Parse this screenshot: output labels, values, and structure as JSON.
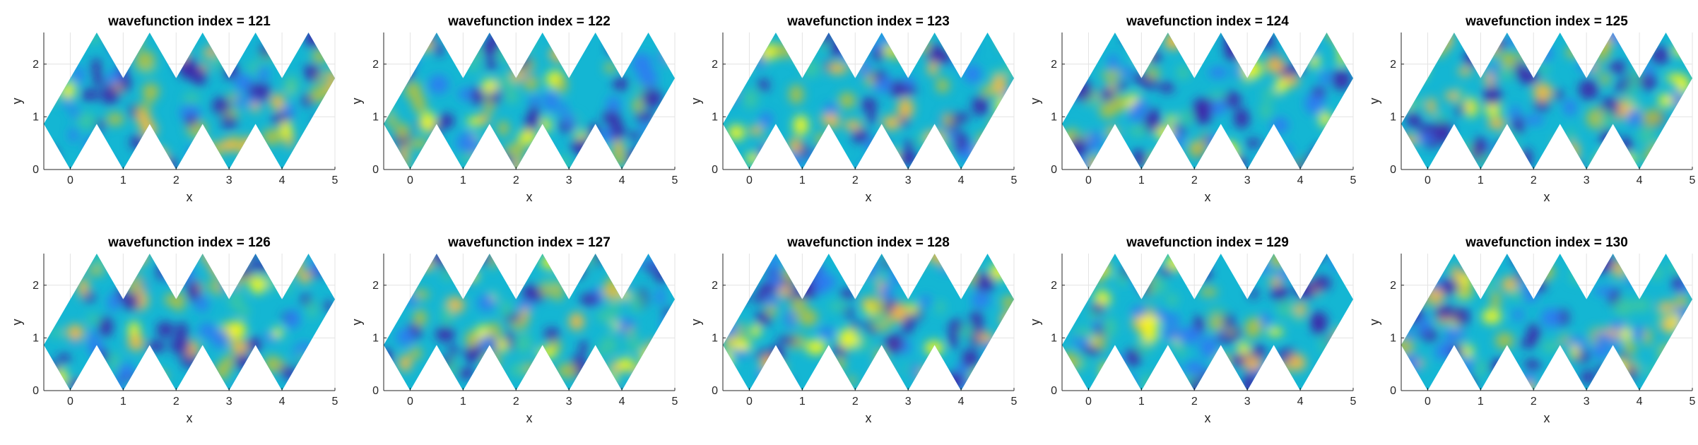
{
  "figure": {
    "colormap": [
      "#3e26a8",
      "#2e7af2",
      "#14b6d3",
      "#3bc7a3",
      "#b0c141",
      "#f8ba3d",
      "#f9fb15"
    ]
  },
  "chart_data": [
    {
      "type": "heatmap",
      "title": "wavefunction index = 121",
      "xlabel": "x",
      "ylabel": "y",
      "xlim": [
        -0.5,
        5
      ],
      "ylim": [
        0,
        2.6
      ],
      "xticks": [
        "0",
        "1",
        "2",
        "3",
        "4",
        "5"
      ],
      "yticks": [
        "0",
        "1",
        "2"
      ],
      "grid": true
    },
    {
      "type": "heatmap",
      "title": "wavefunction index = 122",
      "xlabel": "x",
      "ylabel": "y",
      "xlim": [
        -0.5,
        5
      ],
      "ylim": [
        0,
        2.6
      ],
      "xticks": [
        "0",
        "1",
        "2",
        "3",
        "4",
        "5"
      ],
      "yticks": [
        "0",
        "1",
        "2"
      ],
      "grid": true
    },
    {
      "type": "heatmap",
      "title": "wavefunction index = 123",
      "xlabel": "x",
      "ylabel": "y",
      "xlim": [
        -0.5,
        5
      ],
      "ylim": [
        0,
        2.6
      ],
      "xticks": [
        "0",
        "1",
        "2",
        "3",
        "4",
        "5"
      ],
      "yticks": [
        "0",
        "1",
        "2"
      ],
      "grid": true
    },
    {
      "type": "heatmap",
      "title": "wavefunction index = 124",
      "xlabel": "x",
      "ylabel": "y",
      "xlim": [
        -0.5,
        5
      ],
      "ylim": [
        0,
        2.6
      ],
      "xticks": [
        "0",
        "1",
        "2",
        "3",
        "4",
        "5"
      ],
      "yticks": [
        "0",
        "1",
        "2"
      ],
      "grid": true
    },
    {
      "type": "heatmap",
      "title": "wavefunction index = 125",
      "xlabel": "x",
      "ylabel": "y",
      "xlim": [
        -0.5,
        5
      ],
      "ylim": [
        0,
        2.6
      ],
      "xticks": [
        "0",
        "1",
        "2",
        "3",
        "4",
        "5"
      ],
      "yticks": [
        "0",
        "1",
        "2"
      ],
      "grid": true
    },
    {
      "type": "heatmap",
      "title": "wavefunction index = 126",
      "xlabel": "x",
      "ylabel": "y",
      "xlim": [
        -0.5,
        5
      ],
      "ylim": [
        0,
        2.6
      ],
      "xticks": [
        "0",
        "1",
        "2",
        "3",
        "4",
        "5"
      ],
      "yticks": [
        "0",
        "1",
        "2"
      ],
      "grid": true
    },
    {
      "type": "heatmap",
      "title": "wavefunction index = 127",
      "xlabel": "x",
      "ylabel": "y",
      "xlim": [
        -0.5,
        5
      ],
      "ylim": [
        0,
        2.6
      ],
      "xticks": [
        "0",
        "1",
        "2",
        "3",
        "4",
        "5"
      ],
      "yticks": [
        "0",
        "1",
        "2"
      ],
      "grid": true
    },
    {
      "type": "heatmap",
      "title": "wavefunction index = 128",
      "xlabel": "x",
      "ylabel": "y",
      "xlim": [
        -0.5,
        5
      ],
      "ylim": [
        0,
        2.6
      ],
      "xticks": [
        "0",
        "1",
        "2",
        "3",
        "4",
        "5"
      ],
      "yticks": [
        "0",
        "1",
        "2"
      ],
      "grid": true
    },
    {
      "type": "heatmap",
      "title": "wavefunction index = 129",
      "xlabel": "x",
      "ylabel": "y",
      "xlim": [
        -0.5,
        5
      ],
      "ylim": [
        0,
        2.6
      ],
      "xticks": [
        "0",
        "1",
        "2",
        "3",
        "4",
        "5"
      ],
      "yticks": [
        "0",
        "1",
        "2"
      ],
      "grid": true
    },
    {
      "type": "heatmap",
      "title": "wavefunction index = 130",
      "xlabel": "x",
      "ylabel": "y",
      "xlim": [
        -0.5,
        5
      ],
      "ylim": [
        0,
        2.6
      ],
      "xticks": [
        "0",
        "1",
        "2",
        "3",
        "4",
        "5"
      ],
      "yticks": [
        "0",
        "1",
        "2"
      ],
      "grid": true
    }
  ]
}
